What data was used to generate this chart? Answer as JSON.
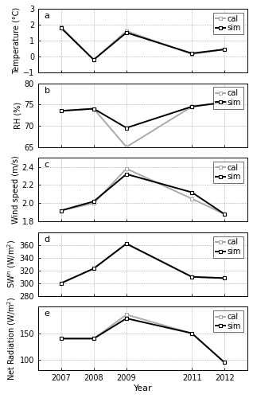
{
  "years": [
    2007,
    2008,
    2009,
    2011,
    2012
  ],
  "temp_cal": [
    1.85,
    -0.2,
    1.6,
    0.15,
    0.45
  ],
  "temp_sim": [
    1.8,
    -0.2,
    1.5,
    0.2,
    0.45
  ],
  "temp_ylim": [
    -1,
    3
  ],
  "temp_yticks": [
    -1,
    0,
    1,
    2,
    3
  ],
  "rh_cal": [
    73.5,
    74.0,
    65.0,
    74.5,
    75.5
  ],
  "rh_sim": [
    73.5,
    74.0,
    69.5,
    74.5,
    75.5
  ],
  "rh_ylim": [
    65,
    80
  ],
  "rh_yticks": [
    65,
    70,
    75,
    80
  ],
  "wind_cal": [
    1.92,
    2.0,
    2.38,
    2.05,
    1.88
  ],
  "wind_sim": [
    1.92,
    2.02,
    2.32,
    2.12,
    1.88
  ],
  "wind_ylim": [
    1.8,
    2.5
  ],
  "wind_yticks": [
    1.8,
    2.0,
    2.2,
    2.4
  ],
  "swin_cal": [
    300,
    323,
    362,
    310,
    308
  ],
  "swin_sim": [
    300,
    323,
    362,
    310,
    308
  ],
  "swin_ylim": [
    280,
    380
  ],
  "swin_yticks": [
    280,
    300,
    320,
    340,
    360
  ],
  "netrad_cal": [
    140,
    140,
    185,
    150,
    95
  ],
  "netrad_sim": [
    140,
    140,
    178,
    150,
    95
  ],
  "netrad_ylim": [
    80,
    200
  ],
  "netrad_yticks": [
    100,
    150
  ],
  "cal_color": "#aaaaaa",
  "sim_color": "#000000",
  "marker": "s",
  "markersize": 3.5,
  "linewidth": 1.4,
  "panel_labels": [
    "a",
    "b",
    "c",
    "d",
    "e"
  ],
  "ylabels": [
    "Temperature (°C)",
    "RH (%)",
    "Wind speed (m/s)",
    "SW$^{in}$ (W/m$^2$)",
    "Net Radiation (W/m$^2$)"
  ],
  "xlabel": "Year",
  "figure_width": 3.18,
  "figure_height": 5.0,
  "dpi": 100
}
